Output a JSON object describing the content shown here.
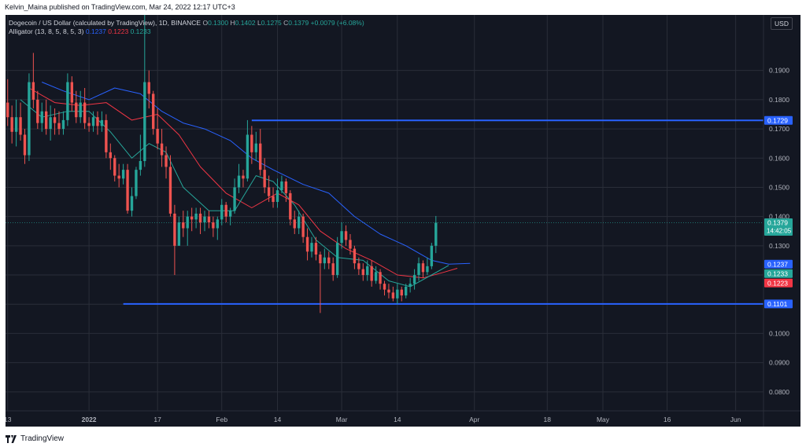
{
  "header": {
    "published_by": "Kelvin_Maina published on TradingView.com, Mar 24, 2022 12:17 UTC+3"
  },
  "legend": {
    "symbol": "Dogecoin / US Dollar (calculated by TradingView), 1D, BINANCE",
    "o_label": "O",
    "o_value": "0.1300",
    "h_label": "H",
    "h_value": "0.1402",
    "l_label": "L",
    "l_value": "0.1275",
    "c_label": "C",
    "c_value": "0.1379",
    "change": "+0.0079 (+6.08%)",
    "indicator": "Alligator (13, 8, 5, 8, 5, 3)",
    "jaw_value": "0.1237",
    "teeth_value": "0.1223",
    "lips_value": "0.1233"
  },
  "currency": "USD",
  "footer": {
    "brand": "TradingView"
  },
  "colors": {
    "background": "#131722",
    "up": "#26a69a",
    "down": "#ef5350",
    "jaw": "#2962ff",
    "teeth": "#f23645",
    "lips": "#26a69a",
    "hline": "#2962ff",
    "grid": "#2a2e39",
    "axis_text": "#b2b5be"
  },
  "chart_data": {
    "type": "candlestick",
    "symbol": "DOGEUSDT",
    "interval": "1D",
    "ylim": [
      0.0735,
      0.209
    ],
    "y_ticks": [
      "0.1900",
      "0.1800",
      "0.1700",
      "0.1600",
      "0.1500",
      "0.1400",
      "0.1300",
      "0.1200",
      "0.1100",
      "0.1000",
      "0.0900",
      "0.0800"
    ],
    "x_ticks": [
      "13",
      "2022",
      "17",
      "Feb",
      "14",
      "Mar",
      "14",
      "Apr",
      "18",
      "May",
      "16",
      "Jun"
    ],
    "x_tick_dates": [
      "2021-12-13",
      "2022-01-01",
      "2022-01-17",
      "2022-02-01",
      "2022-02-14",
      "2022-03-01",
      "2022-03-14",
      "2022-04-01",
      "2022-04-18",
      "2022-05-01",
      "2022-05-16",
      "2022-06-01"
    ],
    "x_start": "2021-12-13",
    "x_end": "2022-06-08",
    "candles": [
      {
        "d": "2021-12-13",
        "o": 0.179,
        "h": 0.187,
        "l": 0.171,
        "c": 0.174
      },
      {
        "d": "2021-12-14",
        "o": 0.174,
        "h": 0.178,
        "l": 0.165,
        "c": 0.169
      },
      {
        "d": "2021-12-15",
        "o": 0.169,
        "h": 0.18,
        "l": 0.164,
        "c": 0.174
      },
      {
        "d": "2021-12-16",
        "o": 0.174,
        "h": 0.179,
        "l": 0.166,
        "c": 0.168
      },
      {
        "d": "2021-12-17",
        "o": 0.168,
        "h": 0.17,
        "l": 0.158,
        "c": 0.161
      },
      {
        "d": "2021-12-18",
        "o": 0.161,
        "h": 0.189,
        "l": 0.159,
        "c": 0.186
      },
      {
        "d": "2021-12-19",
        "o": 0.186,
        "h": 0.196,
        "l": 0.177,
        "c": 0.18
      },
      {
        "d": "2021-12-20",
        "o": 0.18,
        "h": 0.183,
        "l": 0.17,
        "c": 0.172
      },
      {
        "d": "2021-12-21",
        "o": 0.172,
        "h": 0.179,
        "l": 0.169,
        "c": 0.176
      },
      {
        "d": "2021-12-22",
        "o": 0.176,
        "h": 0.18,
        "l": 0.168,
        "c": 0.17
      },
      {
        "d": "2021-12-23",
        "o": 0.17,
        "h": 0.178,
        "l": 0.166,
        "c": 0.174
      },
      {
        "d": "2021-12-24",
        "o": 0.174,
        "h": 0.177,
        "l": 0.168,
        "c": 0.172
      },
      {
        "d": "2021-12-25",
        "o": 0.172,
        "h": 0.176,
        "l": 0.168,
        "c": 0.17
      },
      {
        "d": "2021-12-26",
        "o": 0.17,
        "h": 0.176,
        "l": 0.168,
        "c": 0.173
      },
      {
        "d": "2021-12-27",
        "o": 0.173,
        "h": 0.189,
        "l": 0.171,
        "c": 0.186
      },
      {
        "d": "2021-12-28",
        "o": 0.186,
        "h": 0.188,
        "l": 0.176,
        "c": 0.179
      },
      {
        "d": "2021-12-29",
        "o": 0.179,
        "h": 0.183,
        "l": 0.172,
        "c": 0.174
      },
      {
        "d": "2021-12-30",
        "o": 0.174,
        "h": 0.183,
        "l": 0.172,
        "c": 0.179
      },
      {
        "d": "2021-12-31",
        "o": 0.179,
        "h": 0.184,
        "l": 0.17,
        "c": 0.172
      },
      {
        "d": "2022-01-01",
        "o": 0.172,
        "h": 0.174,
        "l": 0.169,
        "c": 0.171
      },
      {
        "d": "2022-01-02",
        "o": 0.171,
        "h": 0.176,
        "l": 0.169,
        "c": 0.174
      },
      {
        "d": "2022-01-03",
        "o": 0.174,
        "h": 0.176,
        "l": 0.168,
        "c": 0.171
      },
      {
        "d": "2022-01-04",
        "o": 0.171,
        "h": 0.176,
        "l": 0.169,
        "c": 0.173
      },
      {
        "d": "2022-01-05",
        "o": 0.173,
        "h": 0.175,
        "l": 0.16,
        "c": 0.162
      },
      {
        "d": "2022-01-06",
        "o": 0.162,
        "h": 0.165,
        "l": 0.156,
        "c": 0.16
      },
      {
        "d": "2022-01-07",
        "o": 0.16,
        "h": 0.161,
        "l": 0.152,
        "c": 0.154
      },
      {
        "d": "2022-01-08",
        "o": 0.154,
        "h": 0.158,
        "l": 0.15,
        "c": 0.153
      },
      {
        "d": "2022-01-09",
        "o": 0.153,
        "h": 0.158,
        "l": 0.151,
        "c": 0.156
      },
      {
        "d": "2022-01-10",
        "o": 0.156,
        "h": 0.158,
        "l": 0.141,
        "c": 0.142
      },
      {
        "d": "2022-01-11",
        "o": 0.142,
        "h": 0.15,
        "l": 0.14,
        "c": 0.147
      },
      {
        "d": "2022-01-12",
        "o": 0.147,
        "h": 0.157,
        "l": 0.146,
        "c": 0.156
      },
      {
        "d": "2022-01-13",
        "o": 0.156,
        "h": 0.168,
        "l": 0.154,
        "c": 0.159
      },
      {
        "d": "2022-01-14",
        "o": 0.159,
        "h": 0.209,
        "l": 0.157,
        "c": 0.186
      },
      {
        "d": "2022-01-15",
        "o": 0.186,
        "h": 0.19,
        "l": 0.177,
        "c": 0.182
      },
      {
        "d": "2022-01-16",
        "o": 0.182,
        "h": 0.183,
        "l": 0.168,
        "c": 0.17
      },
      {
        "d": "2022-01-17",
        "o": 0.17,
        "h": 0.177,
        "l": 0.163,
        "c": 0.165
      },
      {
        "d": "2022-01-18",
        "o": 0.165,
        "h": 0.17,
        "l": 0.157,
        "c": 0.161
      },
      {
        "d": "2022-01-19",
        "o": 0.161,
        "h": 0.164,
        "l": 0.153,
        "c": 0.157
      },
      {
        "d": "2022-01-20",
        "o": 0.157,
        "h": 0.161,
        "l": 0.14,
        "c": 0.141
      },
      {
        "d": "2022-01-21",
        "o": 0.141,
        "h": 0.144,
        "l": 0.12,
        "c": 0.13
      },
      {
        "d": "2022-01-22",
        "o": 0.13,
        "h": 0.14,
        "l": 0.131,
        "c": 0.138
      },
      {
        "d": "2022-01-23",
        "o": 0.138,
        "h": 0.142,
        "l": 0.133,
        "c": 0.136
      },
      {
        "d": "2022-01-24",
        "o": 0.136,
        "h": 0.142,
        "l": 0.13,
        "c": 0.14
      },
      {
        "d": "2022-01-25",
        "o": 0.14,
        "h": 0.143,
        "l": 0.135,
        "c": 0.139
      },
      {
        "d": "2022-01-26",
        "o": 0.139,
        "h": 0.143,
        "l": 0.136,
        "c": 0.141
      },
      {
        "d": "2022-01-27",
        "o": 0.141,
        "h": 0.143,
        "l": 0.134,
        "c": 0.138
      },
      {
        "d": "2022-01-28",
        "o": 0.138,
        "h": 0.142,
        "l": 0.135,
        "c": 0.14
      },
      {
        "d": "2022-01-29",
        "o": 0.14,
        "h": 0.142,
        "l": 0.136,
        "c": 0.138
      },
      {
        "d": "2022-01-30",
        "o": 0.138,
        "h": 0.14,
        "l": 0.133,
        "c": 0.136
      },
      {
        "d": "2022-01-31",
        "o": 0.136,
        "h": 0.14,
        "l": 0.132,
        "c": 0.139
      },
      {
        "d": "2022-02-01",
        "o": 0.139,
        "h": 0.146,
        "l": 0.137,
        "c": 0.144
      },
      {
        "d": "2022-02-02",
        "o": 0.144,
        "h": 0.145,
        "l": 0.138,
        "c": 0.14
      },
      {
        "d": "2022-02-03",
        "o": 0.14,
        "h": 0.143,
        "l": 0.137,
        "c": 0.142
      },
      {
        "d": "2022-02-04",
        "o": 0.142,
        "h": 0.153,
        "l": 0.141,
        "c": 0.15
      },
      {
        "d": "2022-02-05",
        "o": 0.15,
        "h": 0.158,
        "l": 0.148,
        "c": 0.154
      },
      {
        "d": "2022-02-06",
        "o": 0.154,
        "h": 0.156,
        "l": 0.15,
        "c": 0.153
      },
      {
        "d": "2022-02-07",
        "o": 0.153,
        "h": 0.173,
        "l": 0.152,
        "c": 0.168
      },
      {
        "d": "2022-02-08",
        "o": 0.168,
        "h": 0.171,
        "l": 0.158,
        "c": 0.162
      },
      {
        "d": "2022-02-09",
        "o": 0.162,
        "h": 0.169,
        "l": 0.159,
        "c": 0.165
      },
      {
        "d": "2022-02-10",
        "o": 0.165,
        "h": 0.17,
        "l": 0.154,
        "c": 0.156
      },
      {
        "d": "2022-02-11",
        "o": 0.156,
        "h": 0.16,
        "l": 0.148,
        "c": 0.15
      },
      {
        "d": "2022-02-12",
        "o": 0.15,
        "h": 0.154,
        "l": 0.145,
        "c": 0.147
      },
      {
        "d": "2022-02-13",
        "o": 0.147,
        "h": 0.15,
        "l": 0.143,
        "c": 0.145
      },
      {
        "d": "2022-02-14",
        "o": 0.145,
        "h": 0.153,
        "l": 0.143,
        "c": 0.149
      },
      {
        "d": "2022-02-15",
        "o": 0.149,
        "h": 0.154,
        "l": 0.148,
        "c": 0.152
      },
      {
        "d": "2022-02-16",
        "o": 0.152,
        "h": 0.153,
        "l": 0.145,
        "c": 0.148
      },
      {
        "d": "2022-02-17",
        "o": 0.148,
        "h": 0.149,
        "l": 0.137,
        "c": 0.139
      },
      {
        "d": "2022-02-18",
        "o": 0.139,
        "h": 0.142,
        "l": 0.134,
        "c": 0.136
      },
      {
        "d": "2022-02-19",
        "o": 0.136,
        "h": 0.142,
        "l": 0.134,
        "c": 0.14
      },
      {
        "d": "2022-02-20",
        "o": 0.14,
        "h": 0.141,
        "l": 0.131,
        "c": 0.133
      },
      {
        "d": "2022-02-21",
        "o": 0.133,
        "h": 0.136,
        "l": 0.125,
        "c": 0.128
      },
      {
        "d": "2022-02-22",
        "o": 0.128,
        "h": 0.133,
        "l": 0.126,
        "c": 0.131
      },
      {
        "d": "2022-02-23",
        "o": 0.131,
        "h": 0.133,
        "l": 0.125,
        "c": 0.127
      },
      {
        "d": "2022-02-24",
        "o": 0.127,
        "h": 0.128,
        "l": 0.107,
        "c": 0.124
      },
      {
        "d": "2022-02-25",
        "o": 0.124,
        "h": 0.129,
        "l": 0.122,
        "c": 0.126
      },
      {
        "d": "2022-02-26",
        "o": 0.126,
        "h": 0.128,
        "l": 0.122,
        "c": 0.124
      },
      {
        "d": "2022-02-27",
        "o": 0.124,
        "h": 0.126,
        "l": 0.118,
        "c": 0.12
      },
      {
        "d": "2022-02-28",
        "o": 0.12,
        "h": 0.133,
        "l": 0.119,
        "c": 0.131
      },
      {
        "d": "2022-03-01",
        "o": 0.131,
        "h": 0.138,
        "l": 0.129,
        "c": 0.135
      },
      {
        "d": "2022-03-02",
        "o": 0.135,
        "h": 0.137,
        "l": 0.13,
        "c": 0.132
      },
      {
        "d": "2022-03-03",
        "o": 0.132,
        "h": 0.134,
        "l": 0.127,
        "c": 0.129
      },
      {
        "d": "2022-03-04",
        "o": 0.129,
        "h": 0.13,
        "l": 0.122,
        "c": 0.124
      },
      {
        "d": "2022-03-05",
        "o": 0.124,
        "h": 0.126,
        "l": 0.12,
        "c": 0.122
      },
      {
        "d": "2022-03-06",
        "o": 0.122,
        "h": 0.124,
        "l": 0.118,
        "c": 0.12
      },
      {
        "d": "2022-03-07",
        "o": 0.12,
        "h": 0.125,
        "l": 0.118,
        "c": 0.123
      },
      {
        "d": "2022-03-08",
        "o": 0.123,
        "h": 0.125,
        "l": 0.116,
        "c": 0.118
      },
      {
        "d": "2022-03-09",
        "o": 0.118,
        "h": 0.123,
        "l": 0.117,
        "c": 0.121
      },
      {
        "d": "2022-03-10",
        "o": 0.121,
        "h": 0.122,
        "l": 0.115,
        "c": 0.117
      },
      {
        "d": "2022-03-11",
        "o": 0.117,
        "h": 0.118,
        "l": 0.113,
        "c": 0.115
      },
      {
        "d": "2022-03-12",
        "o": 0.115,
        "h": 0.117,
        "l": 0.112,
        "c": 0.114
      },
      {
        "d": "2022-03-13",
        "o": 0.114,
        "h": 0.116,
        "l": 0.111,
        "c": 0.112
      },
      {
        "d": "2022-03-14",
        "o": 0.112,
        "h": 0.117,
        "l": 0.11,
        "c": 0.115
      },
      {
        "d": "2022-03-15",
        "o": 0.115,
        "h": 0.116,
        "l": 0.111,
        "c": 0.113
      },
      {
        "d": "2022-03-16",
        "o": 0.113,
        "h": 0.117,
        "l": 0.112,
        "c": 0.116
      },
      {
        "d": "2022-03-17",
        "o": 0.116,
        "h": 0.119,
        "l": 0.114,
        "c": 0.117
      },
      {
        "d": "2022-03-18",
        "o": 0.117,
        "h": 0.122,
        "l": 0.115,
        "c": 0.12
      },
      {
        "d": "2022-03-19",
        "o": 0.12,
        "h": 0.126,
        "l": 0.118,
        "c": 0.124
      },
      {
        "d": "2022-03-20",
        "o": 0.124,
        "h": 0.125,
        "l": 0.119,
        "c": 0.121
      },
      {
        "d": "2022-03-21",
        "o": 0.121,
        "h": 0.126,
        "l": 0.12,
        "c": 0.123
      },
      {
        "d": "2022-03-22",
        "o": 0.123,
        "h": 0.131,
        "l": 0.122,
        "c": 0.13
      },
      {
        "d": "2022-03-23",
        "o": 0.13,
        "h": 0.1402,
        "l": 0.1275,
        "c": 0.1379
      }
    ],
    "alligator": {
      "params": [
        13,
        8,
        5,
        8,
        5,
        3
      ],
      "jaw": {
        "label": "Jaw",
        "value": 0.1237,
        "points": [
          [
            "2021-12-21",
            0.186
          ],
          [
            "2021-12-26",
            0.183
          ],
          [
            "2022-01-01",
            0.18
          ],
          [
            "2022-01-07",
            0.184
          ],
          [
            "2022-01-13",
            0.182
          ],
          [
            "2022-01-18",
            0.176
          ],
          [
            "2022-01-23",
            0.172
          ],
          [
            "2022-01-28",
            0.17
          ],
          [
            "2022-02-03",
            0.166
          ],
          [
            "2022-02-08",
            0.16
          ],
          [
            "2022-02-13",
            0.156
          ],
          [
            "2022-02-20",
            0.151
          ],
          [
            "2022-02-26",
            0.148
          ],
          [
            "2022-03-04",
            0.14
          ],
          [
            "2022-03-10",
            0.134
          ],
          [
            "2022-03-16",
            0.13
          ],
          [
            "2022-03-22",
            0.125
          ],
          [
            "2022-03-26",
            0.1237
          ],
          [
            "2022-03-31",
            0.124
          ]
        ]
      },
      "teeth": {
        "label": "Teeth",
        "value": 0.1223,
        "points": [
          [
            "2021-12-18",
            0.184
          ],
          [
            "2021-12-24",
            0.179
          ],
          [
            "2021-12-30",
            0.178
          ],
          [
            "2022-01-05",
            0.179
          ],
          [
            "2022-01-11",
            0.173
          ],
          [
            "2022-01-17",
            0.175
          ],
          [
            "2022-01-22",
            0.168
          ],
          [
            "2022-01-27",
            0.157
          ],
          [
            "2022-02-02",
            0.148
          ],
          [
            "2022-02-08",
            0.143
          ],
          [
            "2022-02-14",
            0.148
          ],
          [
            "2022-02-19",
            0.144
          ],
          [
            "2022-02-24",
            0.135
          ],
          [
            "2022-03-02",
            0.129
          ],
          [
            "2022-03-08",
            0.125
          ],
          [
            "2022-03-14",
            0.12
          ],
          [
            "2022-03-20",
            0.119
          ],
          [
            "2022-03-25",
            0.121
          ],
          [
            "2022-03-28",
            0.1223
          ]
        ]
      },
      "lips": {
        "label": "Lips",
        "value": 0.1233,
        "points": [
          [
            "2021-12-16",
            0.18
          ],
          [
            "2021-12-21",
            0.174
          ],
          [
            "2021-12-27",
            0.176
          ],
          [
            "2022-01-01",
            0.176
          ],
          [
            "2022-01-06",
            0.169
          ],
          [
            "2022-01-11",
            0.16
          ],
          [
            "2022-01-15",
            0.165
          ],
          [
            "2022-01-19",
            0.162
          ],
          [
            "2022-01-23",
            0.15
          ],
          [
            "2022-01-29",
            0.142
          ],
          [
            "2022-02-04",
            0.142
          ],
          [
            "2022-02-09",
            0.154
          ],
          [
            "2022-02-13",
            0.152
          ],
          [
            "2022-02-18",
            0.144
          ],
          [
            "2022-02-23",
            0.132
          ],
          [
            "2022-02-28",
            0.126
          ],
          [
            "2022-03-06",
            0.125
          ],
          [
            "2022-03-12",
            0.118
          ],
          [
            "2022-03-17",
            0.116
          ],
          [
            "2022-03-22",
            0.12
          ],
          [
            "2022-03-26",
            0.1233
          ]
        ]
      }
    },
    "horizontal_lines": [
      {
        "value": 0.1729,
        "label": "0.1729",
        "from": "2022-02-08"
      },
      {
        "value": 0.1101,
        "label": "0.1101",
        "from": "2022-01-09"
      }
    ],
    "last_price": {
      "value": 0.1379,
      "label": "0.1379",
      "countdown": "14:42:05"
    },
    "indicator_labels": [
      {
        "value": 0.1237,
        "label": "0.1237",
        "color": "#2962ff"
      },
      {
        "value": 0.1233,
        "label": "0.1233",
        "color": "#26a69a"
      },
      {
        "value": 0.1223,
        "label": "0.1223",
        "color": "#f23645"
      }
    ],
    "grid": true
  }
}
